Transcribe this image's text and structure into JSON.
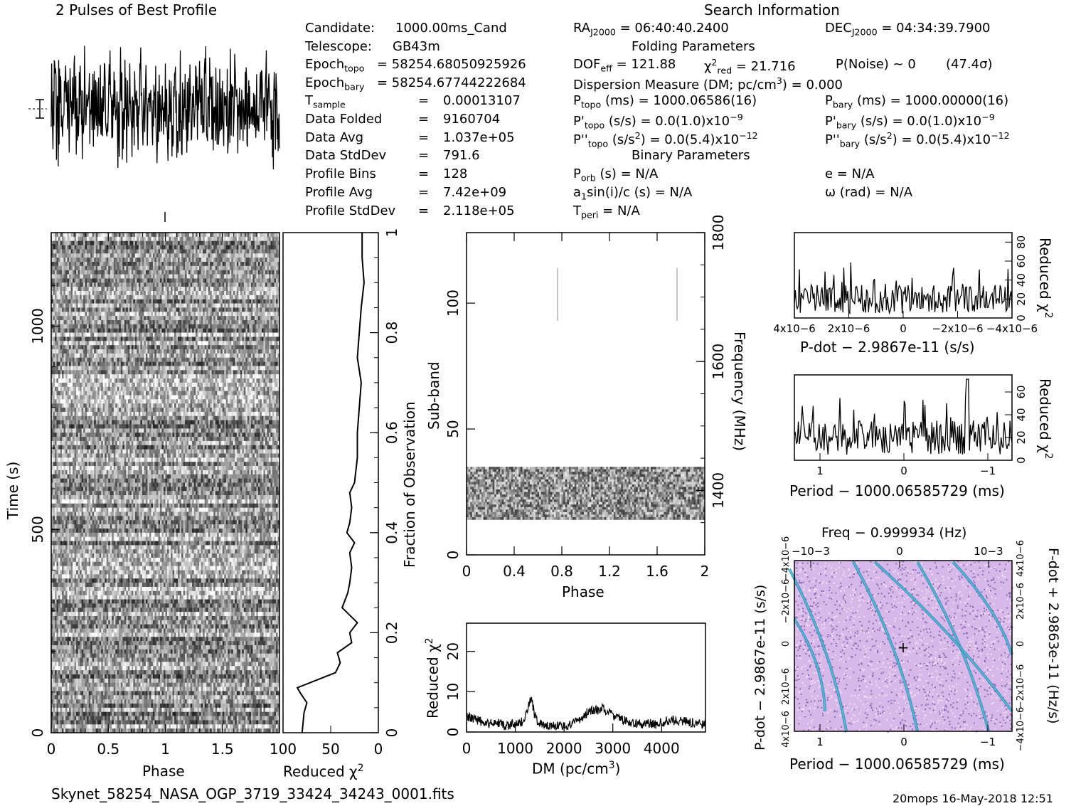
{
  "header": {
    "left_title": "2 Pulses of Best Profile",
    "right_title": "Search Information",
    "filename": "Skynet_58254_NASA_OGP_3719_33424_34243_0001.fits",
    "footer_right": "20mops 16-May-2018 12:51"
  },
  "info_col1": [
    {
      "label": "Candidate:",
      "value": "1000.00ms_Cand"
    },
    {
      "label": "Telescope:",
      "value": "GB43m"
    },
    {
      "label": "Epoch",
      "sub": "topo",
      "value": "= 58254.68050925926"
    },
    {
      "label": "Epoch",
      "sub": "bary",
      "value": "= 58254.67744222684"
    },
    {
      "label": "T",
      "sub": "sample",
      "value": "0.00013107"
    },
    {
      "label": "Data Folded",
      "value": "9160704"
    },
    {
      "label": "Data Avg",
      "value": "1.037e+05"
    },
    {
      "label": "Data StdDev",
      "value": "791.6"
    },
    {
      "label": "Profile Bins",
      "value": "128"
    },
    {
      "label": "Profile Avg",
      "value": "7.42e+09"
    },
    {
      "label": "Profile StdDev",
      "value": "2.118e+05"
    }
  ],
  "info_col2": {
    "ra": "= 06:40:40.2400",
    "ra_sub": "J2000",
    "folding_title": "Folding Parameters",
    "dof": "= 121.88",
    "chi": "= 21.716",
    "pnoise": "P(Noise) ~ 0",
    "sigma": "(47.4σ)",
    "dm": "Dispersion Measure (DM; pc/cm",
    "dm_value": ") = 0.000",
    "ptopo": "(ms) =  1000.06586(16)",
    "pdtopo": "(s/s) = 0.0(1.0)x10",
    "pddtopo": "(s/s",
    "pddtopo_val": ") = 0.0(5.4)x10",
    "binary_title": "Binary Parameters",
    "porb": "(s) = N/A",
    "a1": "sin(i)/c (s) = N/A",
    "tperi": "= N/A"
  },
  "info_col3": {
    "dec": "= 04:34:39.7900",
    "pbary": "(ms) =  1000.00000(16)",
    "pdbary": "(s/s) = 0.0(1.0)x10",
    "pddbary": "(s/s",
    "pddbary_val": ") = 0.0(5.4)x10",
    "e": "e = N/A",
    "omega": "ω (rad) = N/A"
  },
  "exponents": {
    "m9": "−9",
    "m12": "−12",
    "three": "3",
    "two": "2"
  },
  "chart_data": [
    {
      "type": "line",
      "name": "profile",
      "title": "2 Pulses of Best Profile",
      "x": [
        0,
        2
      ],
      "description_values": "noisy profile, no prominent pulse"
    },
    {
      "type": "heatmap",
      "name": "time-phase",
      "xlabel": "Phase",
      "ylabel": "Time (s)",
      "xlim": [
        0,
        2
      ],
      "ylim": [
        0,
        1230
      ],
      "xticks": [
        "0",
        "0.5",
        "1",
        "1.5"
      ],
      "yticks": [
        "0",
        "500",
        "1000"
      ]
    },
    {
      "type": "line",
      "name": "reduced-chi2-vs-time",
      "xlabel": "Reduced χ2",
      "ylabel": "Fraction of Observation",
      "xlim": [
        100,
        0
      ],
      "ylim": [
        0,
        1
      ],
      "xticks": [
        "100",
        "50",
        "0"
      ],
      "yticks": [
        "0",
        "0.2",
        "0.4",
        "0.6",
        "0.8",
        "1"
      ],
      "y": [
        0.0,
        0.04,
        0.06,
        0.08,
        0.09,
        0.12,
        0.14,
        0.16,
        0.18,
        0.2,
        0.22,
        0.25,
        0.28,
        0.3,
        0.33,
        0.36,
        0.38,
        0.4,
        0.42,
        0.45,
        0.48,
        0.5,
        0.55,
        0.6,
        0.65,
        0.7,
        0.75,
        0.8,
        0.85,
        0.9,
        0.95,
        1.0
      ],
      "values": [
        80,
        78,
        75,
        82,
        85,
        45,
        40,
        43,
        28,
        30,
        22,
        38,
        32,
        30,
        28,
        30,
        25,
        33,
        30,
        28,
        30,
        25,
        22,
        22,
        20,
        18,
        22,
        20,
        18,
        15,
        17,
        17
      ]
    },
    {
      "type": "heatmap",
      "name": "subband-phase",
      "xlabel": "Phase",
      "ylabel": "Sub-band",
      "y2label": "Frequency (MHz)",
      "xlim": [
        0,
        2
      ],
      "ylim": [
        0,
        128
      ],
      "y2lim": [
        1300,
        1800
      ],
      "xticks": [
        "0",
        "0.4",
        "0.8",
        "1.2",
        "1.6",
        "2"
      ],
      "yticks": [
        "0",
        "50",
        "100"
      ],
      "y2ticks": [
        "1400",
        "1600",
        "1800"
      ]
    },
    {
      "type": "line",
      "name": "dm-chi2",
      "xlabel": "DM (pc/cm3)",
      "ylabel": "Reduced χ2",
      "xlim": [
        0,
        4900
      ],
      "ylim": [
        0,
        27
      ],
      "xticks": [
        "0",
        "1000",
        "2000",
        "3000",
        "4000"
      ],
      "yticks": [
        "0",
        "10",
        "20"
      ],
      "x": [
        0,
        200,
        400,
        600,
        800,
        1000,
        1150,
        1250,
        1300,
        1350,
        1400,
        1500,
        1700,
        2000,
        2200,
        2400,
        2500,
        2700,
        2800,
        3000,
        3300,
        3600,
        3900,
        4200,
        4500,
        4800
      ],
      "values": [
        4,
        3,
        2,
        2.5,
        1.5,
        2,
        2.5,
        5,
        8.5,
        7,
        4,
        2,
        1.5,
        1.5,
        2,
        4,
        5,
        5.5,
        6,
        4,
        2.5,
        2,
        2,
        3,
        2.5,
        2
      ]
    },
    {
      "type": "line",
      "name": "pdot-chi2",
      "xlabel": "P-dot − 2.9867e-11 (s/s)",
      "ylabel": "Reduced χ2",
      "xticks": [
        "4x10−6",
        "2x10−6",
        "0",
        "−2x10−6",
        "−4x10−6"
      ],
      "yticks": [
        "0",
        "20",
        "40",
        "60",
        "80"
      ]
    },
    {
      "type": "line",
      "name": "period-chi2",
      "xlabel": "Period − 1000.06585729 (ms)",
      "ylabel": "Reduced χ2",
      "xticks": [
        "1",
        "0",
        "−1"
      ],
      "yticks": [
        "0",
        "20",
        "40",
        "60"
      ]
    },
    {
      "type": "heatmap",
      "name": "period-pdot",
      "title": "Freq − 0.999934 (Hz)",
      "xlabel": "Period − 1000.06585729 (ms)",
      "ylabel": "P-dot − 2.9867e-11 (s/s)",
      "y2label": "F-dot + 2.9863e-11 (Hz/s)",
      "xticks": [
        "1",
        "0",
        "−1"
      ],
      "top_ticks": [
        "−10−3",
        "0",
        "10−3"
      ],
      "yticks": [
        "4x10−6",
        "2x10−6",
        "0",
        "−2x10−6",
        "−4x10−6"
      ],
      "y2ticks": [
        "−4x10−6",
        "−2x10−6",
        "0",
        "2x10−6",
        "4x10−6"
      ]
    }
  ]
}
